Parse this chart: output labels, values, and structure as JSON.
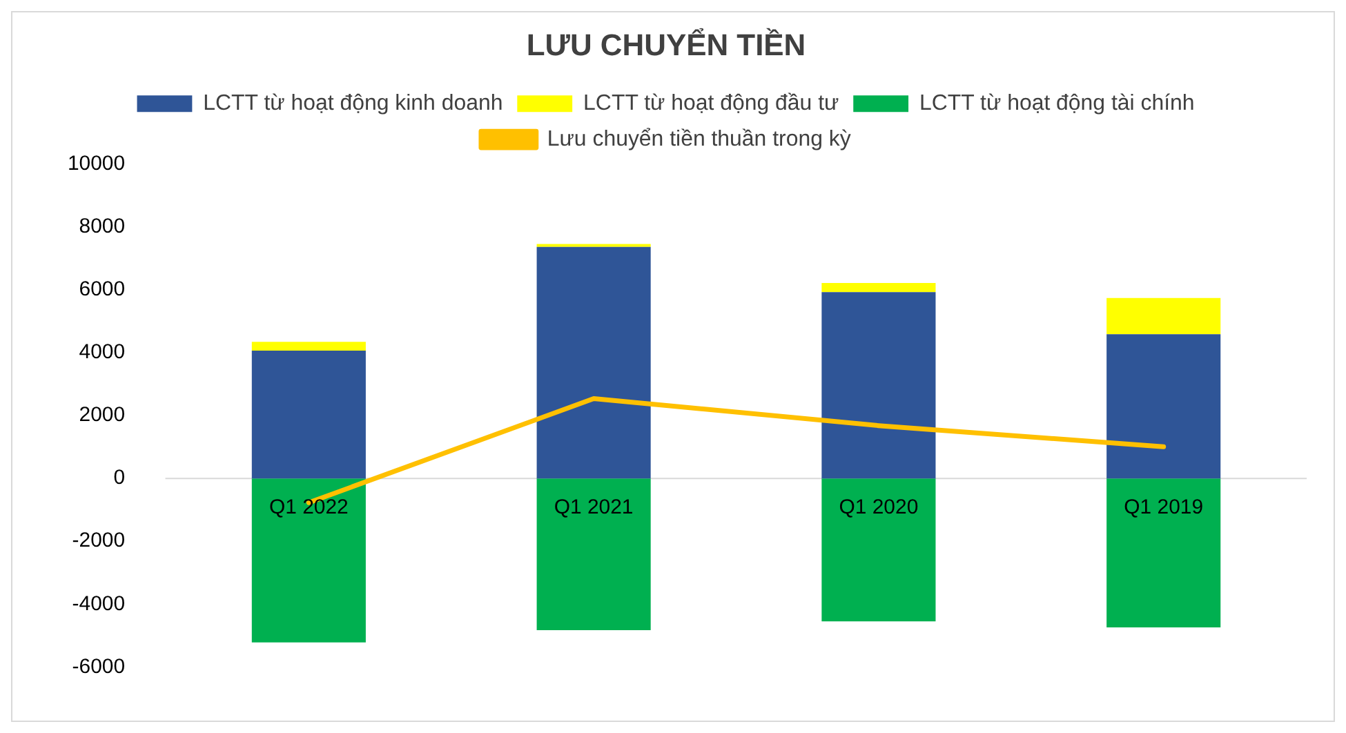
{
  "chart_data": {
    "type": "bar",
    "title": "LƯU CHUYỂN TIỀN",
    "categories": [
      "Q1 2022",
      "Q1 2021",
      "Q1 2020",
      "Q1 2019"
    ],
    "stacked": true,
    "series": [
      {
        "name": "LCTT từ hoạt động kinh doanh",
        "color": "#2f5597",
        "values": [
          4070,
          7370,
          5930,
          4590
        ]
      },
      {
        "name": "LCTT từ hoạt động đầu tư",
        "color": "#ffff00",
        "values": [
          280,
          90,
          290,
          1150
        ]
      },
      {
        "name": "LCTT từ hoạt động tài chính",
        "color": "#00b050",
        "values": [
          -5220,
          -4830,
          -4550,
          -4740
        ]
      },
      {
        "name": "Lưu chuyển tiền thuần trong kỳ",
        "color": "#ffc000",
        "type": "line",
        "values": [
          -770,
          2540,
          1680,
          1010
        ]
      }
    ],
    "ylim": [
      -6000,
      10000
    ],
    "yticks": [
      -6000,
      -4000,
      -2000,
      0,
      2000,
      4000,
      6000,
      8000,
      10000
    ],
    "grid": false,
    "legend": "top"
  }
}
